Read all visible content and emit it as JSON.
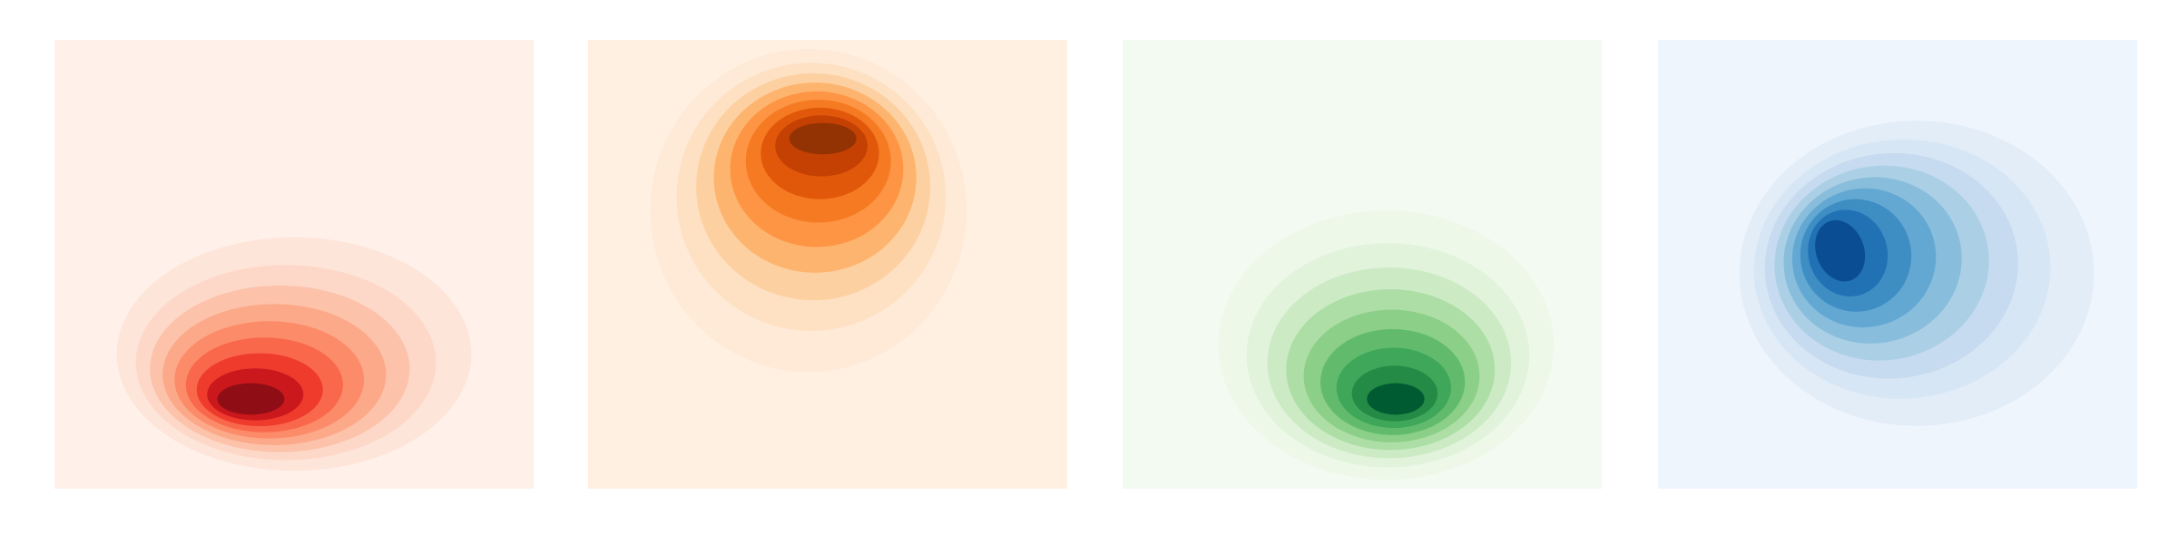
{
  "chart_data": [
    {
      "type": "kde",
      "background": "#fff0ea",
      "colors": [
        "#fee5d9",
        "#fdd8c8",
        "#fcc3aa",
        "#fca98a",
        "#fc8b6a",
        "#f9684a",
        "#ef3b2c",
        "#cb181d",
        "#8f0d15"
      ]
    },
    {
      "type": "kde",
      "background": "#fff0e2",
      "colors": [
        "#feead6",
        "#fee0c2",
        "#fdd0a2",
        "#fdb46e",
        "#fd9544",
        "#f57a22",
        "#e2580b",
        "#c44103",
        "#933203"
      ]
    },
    {
      "type": "kde",
      "background": "#f3faf1",
      "colors": [
        "#edf8e9",
        "#e2f3dc",
        "#ccebc5",
        "#addea6",
        "#8bcf89",
        "#62bb6d",
        "#3fa75a",
        "#238b45",
        "#005a32"
      ]
    },
    {
      "type": "kde",
      "background": "#eff5fd",
      "colors": [
        "#e3edf8",
        "#d7e6f5",
        "#c6dbef",
        "#abd0e6",
        "#88bddc",
        "#63a8d3",
        "#3e8ec4",
        "#2171b5",
        "#0b4d92"
      ]
    }
  ]
}
